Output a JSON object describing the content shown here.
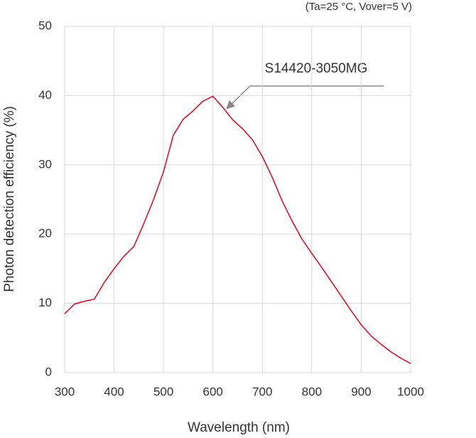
{
  "chart_data": {
    "type": "line",
    "note": "(Ta=25 °C, Vover=5 V)",
    "annotation": "S14420-3050MG",
    "xlabel": "Wavelength (nm)",
    "ylabel": "Photon detection efficiency (%)",
    "x": [
      300,
      320,
      340,
      360,
      380,
      400,
      420,
      440,
      460,
      480,
      500,
      520,
      540,
      560,
      580,
      600,
      620,
      640,
      660,
      680,
      700,
      720,
      740,
      760,
      780,
      800,
      820,
      840,
      860,
      880,
      900,
      920,
      940,
      960,
      980,
      1000
    ],
    "series": [
      {
        "name": "S14420-3050MG",
        "color": "#e0102a",
        "values": [
          8.5,
          9.9,
          10.3,
          10.6,
          13,
          15,
          16.8,
          18.2,
          21.5,
          25,
          29,
          34.3,
          36.6,
          37.8,
          39.2,
          39.9,
          38.3,
          36.5,
          35.2,
          33.6,
          31.2,
          28.2,
          24.8,
          21.9,
          19.3,
          17.2,
          15.2,
          13.1,
          11,
          8.9,
          6.9,
          5.3,
          4.1,
          3,
          2.1,
          1.3
        ]
      }
    ],
    "xlim": [
      300,
      1000
    ],
    "xticks": [
      300,
      400,
      500,
      600,
      700,
      800,
      900,
      1000
    ],
    "ylim": [
      0,
      50
    ],
    "yticks": [
      0,
      10,
      20,
      30,
      40,
      50
    ],
    "grid": true
  }
}
